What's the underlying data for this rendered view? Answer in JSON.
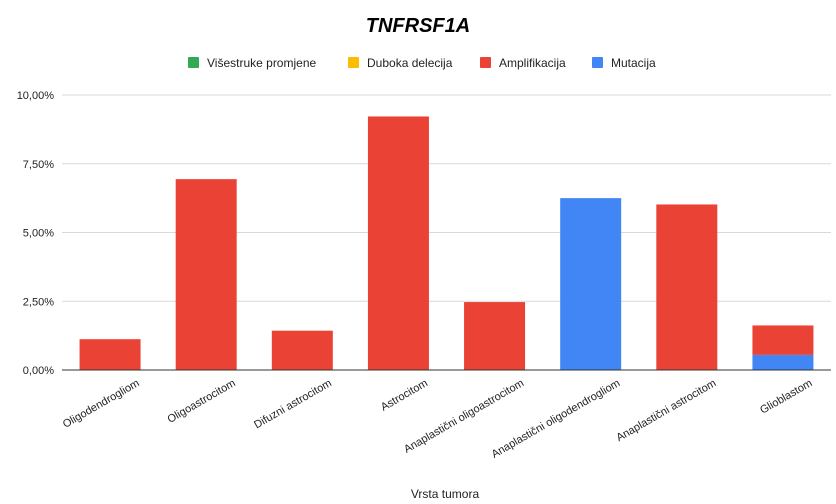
{
  "chart_data": {
    "type": "bar",
    "stacked": true,
    "title": "TNFRSF1A",
    "xlabel": "Vrsta tumora",
    "ylabel": "",
    "ylim": [
      0,
      10
    ],
    "yticks": [
      {
        "value": 0,
        "label": "0,00%"
      },
      {
        "value": 2.5,
        "label": "2,50%"
      },
      {
        "value": 5,
        "label": "5,00%"
      },
      {
        "value": 7.5,
        "label": "7,50%"
      },
      {
        "value": 10,
        "label": "10,00%"
      }
    ],
    "grid": true,
    "legend_position": "top",
    "categories": [
      "Oligodendrogliom",
      "Oligoastrocitom",
      "Difuzni astrocitom",
      "Astrocitom",
      "Anaplastični oligoastrocitom",
      "Anaplastični oligodendrogliom",
      "Anaplastični astrocitom",
      "Glioblastom"
    ],
    "series": [
      {
        "name": "Višestruke promjene",
        "color": "#34a853",
        "values": [
          0,
          0,
          0,
          0,
          0,
          0,
          0,
          0
        ]
      },
      {
        "name": "Duboka delecija",
        "color": "#fbbc04",
        "values": [
          0,
          0,
          0,
          0,
          0,
          0,
          0,
          0
        ]
      },
      {
        "name": "Amplifikacija",
        "color": "#ea4335",
        "values": [
          1.12,
          6.94,
          1.43,
          9.22,
          2.47,
          0,
          6.02,
          1.07
        ]
      },
      {
        "name": "Mutacija",
        "color": "#4285f4",
        "values": [
          0,
          0,
          0,
          0,
          0,
          6.25,
          0,
          0.55
        ]
      }
    ],
    "stack_order": [
      "Mutacija",
      "Amplifikacija",
      "Duboka delecija",
      "Višestruke promjene"
    ]
  }
}
